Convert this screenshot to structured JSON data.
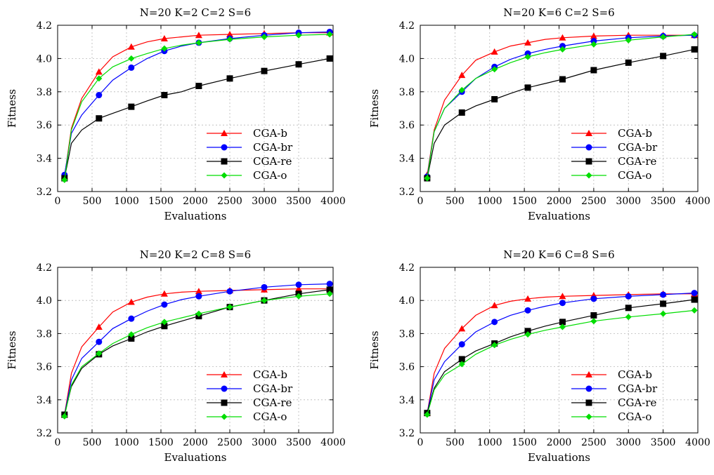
{
  "chart_data": [
    {
      "type": "line",
      "title": "N=20  K=2  C=2  S=6",
      "xlabel": "Evaluations",
      "ylabel": "Fitness",
      "xlim": [
        0,
        4000
      ],
      "ylim": [
        3.2,
        4.2
      ],
      "xticks": [
        "0",
        "500",
        "1000",
        "1500",
        "2000",
        "2500",
        "3000",
        "3500",
        "4000"
      ],
      "yticks": [
        "3.2",
        "3.4",
        "3.6",
        "3.8",
        "4.0",
        "4.2"
      ],
      "grid": true,
      "legend_position": "bottom-right",
      "series": [
        {
          "name": "CGA-b",
          "color": "#ff0000",
          "marker": "triangle",
          "x": [
            100,
            200,
            350,
            600,
            800,
            1070,
            1300,
            1550,
            1800,
            2050,
            2500,
            3000,
            3500,
            3950
          ],
          "y": [
            3.29,
            3.58,
            3.76,
            3.92,
            4.01,
            4.07,
            4.1,
            4.12,
            4.13,
            4.14,
            4.145,
            4.15,
            4.155,
            4.155
          ]
        },
        {
          "name": "CGA-br",
          "color": "#0000ff",
          "marker": "circle",
          "x": [
            100,
            200,
            350,
            600,
            800,
            1070,
            1300,
            1550,
            1800,
            2050,
            2500,
            3000,
            3500,
            3950
          ],
          "y": [
            3.3,
            3.55,
            3.66,
            3.78,
            3.87,
            3.945,
            4.0,
            4.045,
            4.075,
            4.095,
            4.12,
            4.14,
            4.155,
            4.16
          ]
        },
        {
          "name": "CGA-re",
          "color": "#000000",
          "marker": "square",
          "x": [
            100,
            200,
            350,
            600,
            800,
            1070,
            1300,
            1550,
            1800,
            2050,
            2500,
            3000,
            3500,
            3950
          ],
          "y": [
            3.28,
            3.49,
            3.57,
            3.64,
            3.67,
            3.71,
            3.745,
            3.78,
            3.8,
            3.835,
            3.88,
            3.925,
            3.965,
            4.0
          ]
        },
        {
          "name": "CGA-o",
          "color": "#00dd00",
          "marker": "diamond",
          "x": [
            100,
            200,
            350,
            600,
            800,
            1070,
            1300,
            1550,
            1800,
            2050,
            2500,
            3000,
            3500,
            3950
          ],
          "y": [
            3.27,
            3.57,
            3.74,
            3.88,
            3.95,
            4.0,
            4.03,
            4.06,
            4.08,
            4.095,
            4.115,
            4.13,
            4.14,
            4.145
          ]
        }
      ]
    },
    {
      "type": "line",
      "title": "N=20  K=6  C=2  S=6",
      "xlabel": "Evaluations",
      "ylabel": "Fitness",
      "xlim": [
        0,
        4000
      ],
      "ylim": [
        3.2,
        4.2
      ],
      "xticks": [
        "0",
        "500",
        "1000",
        "1500",
        "2000",
        "2500",
        "3000",
        "3500",
        "4000"
      ],
      "yticks": [
        "3.2",
        "3.4",
        "3.6",
        "3.8",
        "4.0",
        "4.2"
      ],
      "grid": true,
      "legend_position": "bottom-right",
      "series": [
        {
          "name": "CGA-b",
          "color": "#ff0000",
          "marker": "triangle",
          "x": [
            100,
            200,
            350,
            600,
            800,
            1070,
            1300,
            1550,
            1800,
            2050,
            2500,
            3000,
            3500,
            3950
          ],
          "y": [
            3.3,
            3.57,
            3.75,
            3.9,
            3.99,
            4.04,
            4.075,
            4.095,
            4.115,
            4.125,
            4.135,
            4.14,
            4.14,
            4.14
          ]
        },
        {
          "name": "CGA-br",
          "color": "#0000ff",
          "marker": "circle",
          "x": [
            100,
            200,
            350,
            600,
            800,
            1070,
            1300,
            1550,
            1800,
            2050,
            2500,
            3000,
            3500,
            3950
          ],
          "y": [
            3.29,
            3.56,
            3.7,
            3.8,
            3.88,
            3.95,
            3.995,
            4.03,
            4.055,
            4.075,
            4.105,
            4.125,
            4.135,
            4.14
          ]
        },
        {
          "name": "CGA-re",
          "color": "#000000",
          "marker": "square",
          "x": [
            100,
            200,
            350,
            600,
            800,
            1070,
            1300,
            1550,
            1800,
            2050,
            2500,
            3000,
            3500,
            3950
          ],
          "y": [
            3.28,
            3.49,
            3.6,
            3.675,
            3.715,
            3.755,
            3.79,
            3.825,
            3.85,
            3.875,
            3.93,
            3.975,
            4.015,
            4.055
          ]
        },
        {
          "name": "CGA-o",
          "color": "#00dd00",
          "marker": "diamond",
          "x": [
            100,
            200,
            350,
            600,
            800,
            1070,
            1300,
            1550,
            1800,
            2050,
            2500,
            3000,
            3500,
            3950
          ],
          "y": [
            3.28,
            3.56,
            3.7,
            3.81,
            3.88,
            3.935,
            3.975,
            4.01,
            4.035,
            4.055,
            4.085,
            4.11,
            4.13,
            4.145
          ]
        }
      ]
    },
    {
      "type": "line",
      "title": "N=20  K=2  C=8  S=6",
      "xlabel": "Evaluations",
      "ylabel": "Fitness",
      "xlim": [
        0,
        4000
      ],
      "ylim": [
        3.2,
        4.2
      ],
      "xticks": [
        "0",
        "500",
        "1000",
        "1500",
        "2000",
        "2500",
        "3000",
        "3500",
        "4000"
      ],
      "yticks": [
        "3.2",
        "3.4",
        "3.6",
        "3.8",
        "4.0",
        "4.2"
      ],
      "grid": true,
      "legend_position": "bottom-right",
      "series": [
        {
          "name": "CGA-b",
          "color": "#ff0000",
          "marker": "triangle",
          "x": [
            100,
            200,
            350,
            600,
            800,
            1070,
            1300,
            1550,
            1800,
            2050,
            2500,
            3000,
            3500,
            3950
          ],
          "y": [
            3.31,
            3.56,
            3.72,
            3.84,
            3.93,
            3.99,
            4.02,
            4.04,
            4.05,
            4.055,
            4.06,
            4.065,
            4.07,
            4.07
          ]
        },
        {
          "name": "CGA-br",
          "color": "#0000ff",
          "marker": "circle",
          "x": [
            100,
            200,
            350,
            600,
            800,
            1070,
            1300,
            1550,
            1800,
            2050,
            2500,
            3000,
            3500,
            3950
          ],
          "y": [
            3.31,
            3.52,
            3.65,
            3.75,
            3.83,
            3.89,
            3.935,
            3.975,
            4.005,
            4.025,
            4.055,
            4.08,
            4.095,
            4.1
          ]
        },
        {
          "name": "CGA-re",
          "color": "#000000",
          "marker": "square",
          "x": [
            100,
            200,
            350,
            600,
            800,
            1070,
            1300,
            1550,
            1800,
            2050,
            2500,
            3000,
            3500,
            3950
          ],
          "y": [
            3.31,
            3.48,
            3.59,
            3.675,
            3.725,
            3.77,
            3.81,
            3.845,
            3.875,
            3.905,
            3.96,
            4.0,
            4.04,
            4.065
          ]
        },
        {
          "name": "CGA-o",
          "color": "#00dd00",
          "marker": "diamond",
          "x": [
            100,
            200,
            350,
            600,
            800,
            1070,
            1300,
            1550,
            1800,
            2050,
            2500,
            3000,
            3500,
            3950
          ],
          "y": [
            3.3,
            3.49,
            3.6,
            3.68,
            3.74,
            3.795,
            3.835,
            3.87,
            3.895,
            3.92,
            3.96,
            4.0,
            4.025,
            4.04
          ]
        }
      ]
    },
    {
      "type": "line",
      "title": "N=20  K=6  C=8  S=6",
      "xlabel": "Evaluations",
      "ylabel": "Fitness",
      "xlim": [
        0,
        4000
      ],
      "ylim": [
        3.2,
        4.2
      ],
      "xticks": [
        "0",
        "500",
        "1000",
        "1500",
        "2000",
        "2500",
        "3000",
        "3500",
        "4000"
      ],
      "yticks": [
        "3.2",
        "3.4",
        "3.6",
        "3.8",
        "4.0",
        "4.2"
      ],
      "grid": true,
      "legend_position": "bottom-right",
      "series": [
        {
          "name": "CGA-b",
          "color": "#ff0000",
          "marker": "triangle",
          "x": [
            100,
            200,
            350,
            600,
            800,
            1070,
            1300,
            1550,
            1800,
            2050,
            2500,
            3000,
            3500,
            3950
          ],
          "y": [
            3.32,
            3.56,
            3.71,
            3.83,
            3.91,
            3.97,
            3.995,
            4.01,
            4.02,
            4.025,
            4.03,
            4.035,
            4.04,
            4.04
          ]
        },
        {
          "name": "CGA-br",
          "color": "#0000ff",
          "marker": "circle",
          "x": [
            100,
            200,
            350,
            600,
            800,
            1070,
            1300,
            1550,
            1800,
            2050,
            2500,
            3000,
            3500,
            3950
          ],
          "y": [
            3.32,
            3.52,
            3.63,
            3.735,
            3.81,
            3.87,
            3.91,
            3.94,
            3.965,
            3.985,
            4.01,
            4.025,
            4.035,
            4.045
          ]
        },
        {
          "name": "CGA-re",
          "color": "#000000",
          "marker": "square",
          "x": [
            100,
            200,
            350,
            600,
            800,
            1070,
            1300,
            1550,
            1800,
            2050,
            2500,
            3000,
            3500,
            3950
          ],
          "y": [
            3.32,
            3.47,
            3.57,
            3.645,
            3.695,
            3.74,
            3.78,
            3.815,
            3.845,
            3.87,
            3.91,
            3.955,
            3.98,
            4.005
          ]
        },
        {
          "name": "CGA-o",
          "color": "#00dd00",
          "marker": "diamond",
          "x": [
            100,
            200,
            350,
            600,
            800,
            1070,
            1300,
            1550,
            1800,
            2050,
            2500,
            3000,
            3500,
            3950
          ],
          "y": [
            3.31,
            3.46,
            3.55,
            3.615,
            3.675,
            3.73,
            3.765,
            3.795,
            3.82,
            3.84,
            3.875,
            3.9,
            3.92,
            3.94
          ]
        }
      ]
    }
  ]
}
